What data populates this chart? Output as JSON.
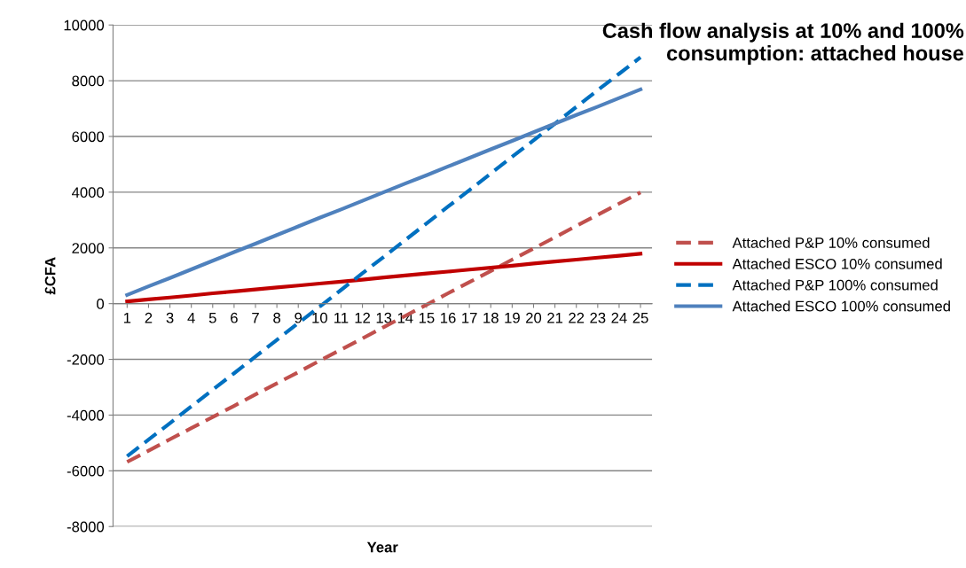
{
  "chart_data": {
    "type": "line",
    "title": "Cash flow analysis at 10% and 100% consumption: attached house",
    "xlabel": "Year",
    "ylabel": "£CFA",
    "categories": [
      "1",
      "2",
      "3",
      "4",
      "5",
      "6",
      "7",
      "8",
      "9",
      "10",
      "11",
      "12",
      "13",
      "14",
      "15",
      "16",
      "17",
      "18",
      "19",
      "20",
      "21",
      "22",
      "23",
      "24",
      "25"
    ],
    "series": [
      {
        "name": "Attached P&P 10% consumed",
        "color": "#c0504d",
        "line_style": "dashed",
        "values": [
          -5680,
          -5280,
          -4870,
          -4470,
          -4070,
          -3670,
          -3260,
          -2860,
          -2460,
          -2050,
          -1650,
          -1250,
          -840,
          -440,
          -40,
          370,
          770,
          1170,
          1580,
          1980,
          2380,
          2790,
          3190,
          3590,
          3990
        ]
      },
      {
        "name": "Attached ESCO 10% consumed",
        "color": "#c00000",
        "line_style": "solid",
        "values": [
          80,
          150,
          220,
          290,
          370,
          440,
          510,
          580,
          650,
          720,
          790,
          860,
          940,
          1010,
          1080,
          1150,
          1220,
          1290,
          1360,
          1440,
          1510,
          1580,
          1650,
          1720,
          1790
        ]
      },
      {
        "name": "Attached P&P 100% consumed",
        "color": "#0070c0",
        "line_style": "dashed",
        "values": [
          -5480,
          -4880,
          -4290,
          -3690,
          -3090,
          -2500,
          -1900,
          -1300,
          -700,
          -110,
          490,
          1090,
          1680,
          2280,
          2880,
          3480,
          4070,
          4670,
          5270,
          5860,
          6460,
          7060,
          7660,
          8250,
          8840
        ]
      },
      {
        "name": "Attached ESCO 100% consumed",
        "color": "#4f81bd",
        "line_style": "solid",
        "values": [
          310,
          620,
          920,
          1230,
          1540,
          1850,
          2150,
          2460,
          2770,
          3080,
          3380,
          3690,
          4000,
          4310,
          4610,
          4920,
          5230,
          5540,
          5840,
          6150,
          6460,
          6770,
          7070,
          7380,
          7690
        ]
      }
    ],
    "ylim": [
      -8000,
      10000
    ],
    "yticks": [
      -8000,
      -6000,
      -4000,
      -2000,
      0,
      2000,
      4000,
      6000,
      8000,
      10000
    ],
    "grid": "y",
    "legend": "right",
    "marker": "none"
  }
}
